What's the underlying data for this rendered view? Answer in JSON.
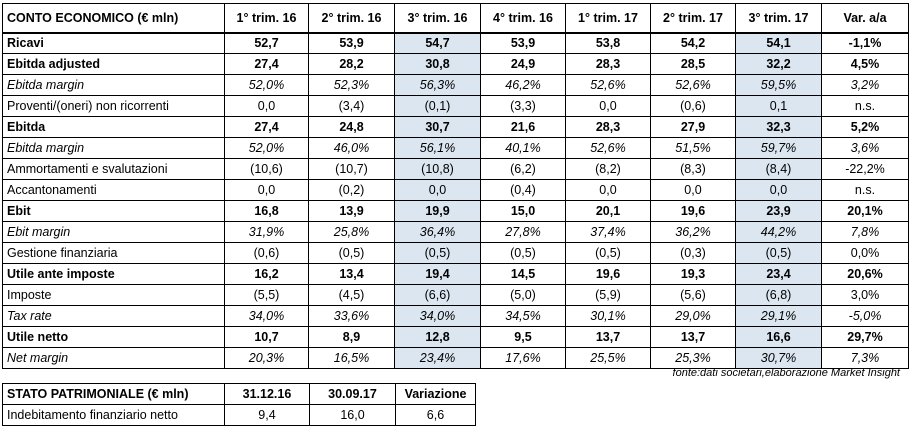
{
  "income_table": {
    "header": [
      "CONTO ECONOMICO (€ mln)",
      "1° trim. 16",
      "2° trim. 16",
      "3° trim. 16",
      "4° trim. 16",
      "1° trim. 17",
      "2° trim. 17",
      "3° trim. 17",
      "Var. a/a"
    ],
    "rows": [
      [
        "Ricavi",
        "52,7",
        "53,9",
        "54,7",
        "53,9",
        "53,8",
        "54,2",
        "54,1",
        "-1,1%"
      ],
      [
        "Ebitda adjusted",
        "27,4",
        "28,2",
        "30,8",
        "24,9",
        "28,3",
        "28,5",
        "32,2",
        "4,5%"
      ],
      [
        "Ebitda margin",
        "52,0%",
        "52,3%",
        "56,3%",
        "46,2%",
        "52,6%",
        "52,6%",
        "59,5%",
        "3,2%"
      ],
      [
        "Proventi/(oneri) non ricorrenti",
        "0,0",
        "(3,4)",
        "(0,1)",
        "(3,3)",
        "0,0",
        "(0,6)",
        "0,1",
        "n.s."
      ],
      [
        "Ebitda",
        "27,4",
        "24,8",
        "30,7",
        "21,6",
        "28,3",
        "27,9",
        "32,3",
        "5,2%"
      ],
      [
        "Ebitda margin",
        "52,0%",
        "46,0%",
        "56,1%",
        "40,1%",
        "52,6%",
        "51,5%",
        "59,7%",
        "3,6%"
      ],
      [
        "Ammortamenti e svalutazioni",
        "(10,6)",
        "(10,7)",
        "(10,8)",
        "(6,2)",
        "(8,2)",
        "(8,3)",
        "(8,4)",
        "-22,2%"
      ],
      [
        "Accantonamenti",
        "0,0",
        "(0,2)",
        "0,0",
        "(0,4)",
        "0,0",
        "0,0",
        "0,0",
        "n.s."
      ],
      [
        "Ebit",
        "16,8",
        "13,9",
        "19,9",
        "15,0",
        "20,1",
        "19,6",
        "23,9",
        "20,1%"
      ],
      [
        "Ebit margin",
        "31,9%",
        "25,8%",
        "36,4%",
        "27,8%",
        "37,4%",
        "36,2%",
        "44,2%",
        "7,8%"
      ],
      [
        "Gestione finanziaria",
        "(0,6)",
        "(0,5)",
        "(0,5)",
        "(0,5)",
        "(0,5)",
        "(0,3)",
        "(0,5)",
        "0,0%"
      ],
      [
        "Utile ante imposte",
        "16,2",
        "13,4",
        "19,4",
        "14,5",
        "19,6",
        "19,3",
        "23,4",
        "20,6%"
      ],
      [
        "Imposte",
        "(5,5)",
        "(4,5)",
        "(6,6)",
        "(5,0)",
        "(5,9)",
        "(5,6)",
        "(6,8)",
        "3,0%"
      ],
      [
        "Tax rate",
        "34,0%",
        "33,6%",
        "34,0%",
        "34,5%",
        "30,1%",
        "29,0%",
        "29,1%",
        "-5,0%"
      ],
      [
        "Utile netto",
        "10,7",
        "8,9",
        "12,8",
        "9,5",
        "13,7",
        "13,7",
        "16,6",
        "29,7%"
      ],
      [
        "Net margin",
        "20,3%",
        "16,5%",
        "23,4%",
        "17,6%",
        "25,5%",
        "25,3%",
        "30,7%",
        "7,3%"
      ]
    ]
  },
  "source": "fonte:dati societari,elaborazione Market Insight",
  "balance_table": {
    "header": [
      "STATO PATRIMONIALE (€ mln)",
      "31.12.16",
      "30.09.17",
      "Variazione"
    ],
    "rows": [
      [
        "Indebitamento finanziario netto",
        "9,4",
        "16,0",
        "6,6"
      ]
    ]
  }
}
